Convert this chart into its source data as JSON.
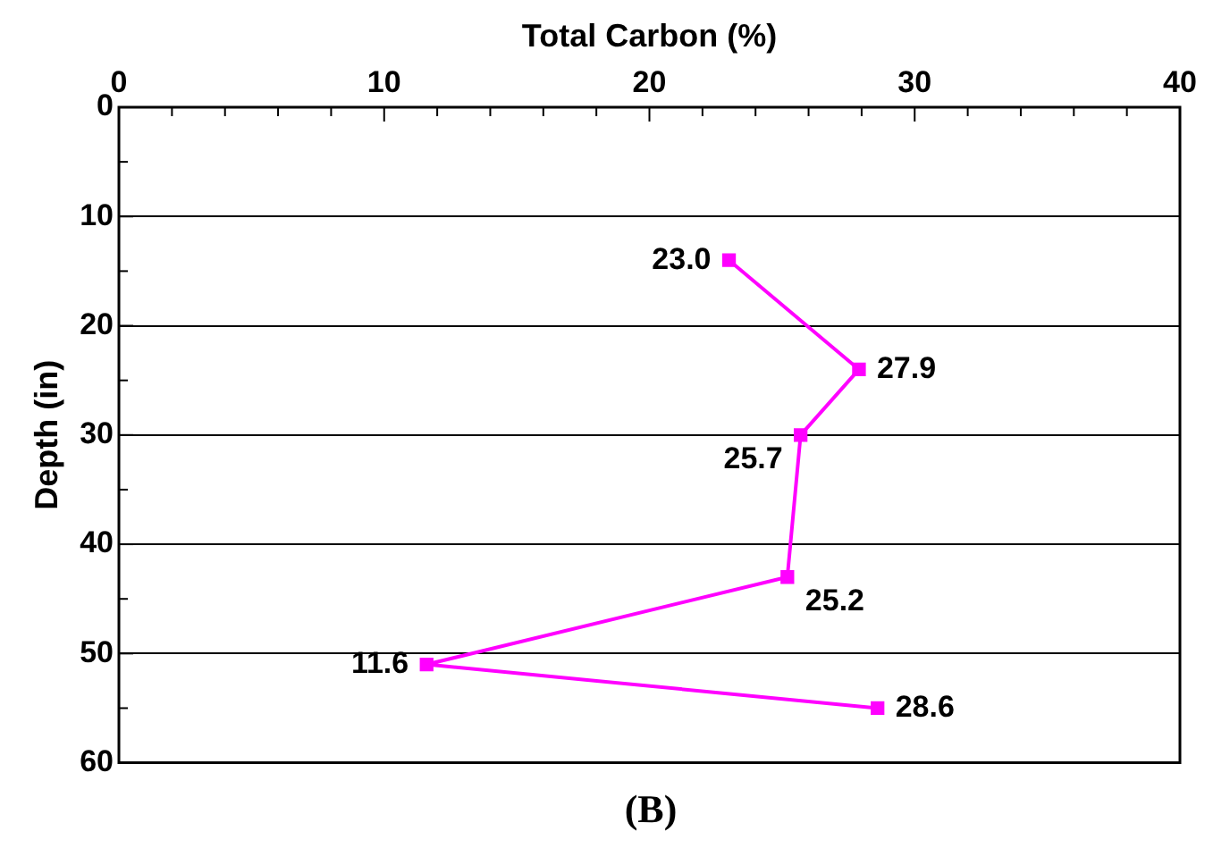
{
  "chart_data": {
    "type": "line",
    "xlabel": "Total Carbon (%)",
    "ylabel": "Depth (in)",
    "annotations": [
      "(B)",
      {
        "text": "23.0",
        "x": 23.0,
        "y": 14
      },
      {
        "text": "27.9",
        "x": 27.9,
        "y": 24
      },
      {
        "text": "25.7",
        "x": 25.7,
        "y": 30
      },
      {
        "text": "25.2",
        "x": 25.2,
        "y": 43
      },
      {
        "text": "11.6",
        "x": 11.6,
        "y": 51
      },
      {
        "text": "28.6",
        "x": 28.6,
        "y": 55
      }
    ],
    "x": [
      23.0,
      27.9,
      25.7,
      25.2,
      11.6,
      28.6
    ],
    "series": [
      {
        "color": "#ff00ff",
        "values": [
          14,
          24,
          30,
          43,
          51,
          55
        ]
      }
    ],
    "xlim": [
      0,
      40
    ],
    "xticks": [
      0,
      {
        "value": 2,
        "label": null
      },
      {
        "value": 4,
        "label": null
      },
      {
        "value": 6,
        "label": null
      },
      {
        "value": 8,
        "label": null
      },
      10,
      {
        "value": 12,
        "label": null
      },
      {
        "value": 14,
        "label": null
      },
      {
        "value": 16,
        "label": null
      },
      {
        "value": 18,
        "label": null
      },
      20,
      {
        "value": 22,
        "label": null
      },
      {
        "value": 24,
        "label": null
      },
      {
        "value": 26,
        "label": null
      },
      {
        "value": 28,
        "label": null
      },
      30,
      {
        "value": 32,
        "label": null
      },
      {
        "value": 34,
        "label": null
      },
      {
        "value": 36,
        "label": null
      },
      {
        "value": 38,
        "label": null
      },
      40
    ],
    "ylim": [
      60,
      0
    ],
    "yticks": [
      0,
      {
        "value": 5,
        "label": null
      },
      10,
      {
        "value": 15,
        "label": null
      },
      20,
      {
        "value": 25,
        "label": null
      },
      30,
      {
        "value": 35,
        "label": null
      },
      40,
      {
        "value": 45,
        "label": null
      },
      50,
      {
        "value": 55,
        "label": null
      },
      60
    ],
    "grid": "y",
    "marker": "square",
    "line_style": "solid",
    "legend": false
  }
}
